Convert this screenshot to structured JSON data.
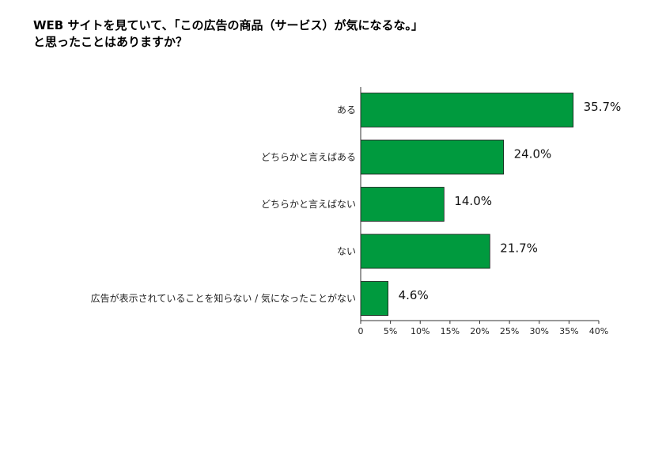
{
  "chart_data": {
    "type": "bar",
    "orientation": "horizontal",
    "title_lines": [
      "WEB サイトを見ていて､「この広告の商品（サービス）が気になるな｡」",
      "と思ったことはありますか？"
    ],
    "categories": [
      "ある",
      "どちらかと言えばある",
      "どちらかと言えばない",
      "ない",
      "広告が表示されていることを知らない / 気になったことがない"
    ],
    "values": [
      35.7,
      24.0,
      14.0,
      21.7,
      4.6
    ],
    "value_labels": [
      "35.7%",
      "24.0%",
      "14.0%",
      "21.7%",
      "4.6%"
    ],
    "xlim": [
      0,
      40
    ],
    "x_ticks": [
      0,
      5,
      10,
      15,
      20,
      25,
      30,
      35,
      40
    ],
    "x_tick_labels": [
      "0",
      "5%",
      "10%",
      "15%",
      "20%",
      "25%",
      "30%",
      "35%",
      "40%"
    ],
    "bar_color": "#009a3e",
    "grid": false,
    "legend": "none"
  }
}
